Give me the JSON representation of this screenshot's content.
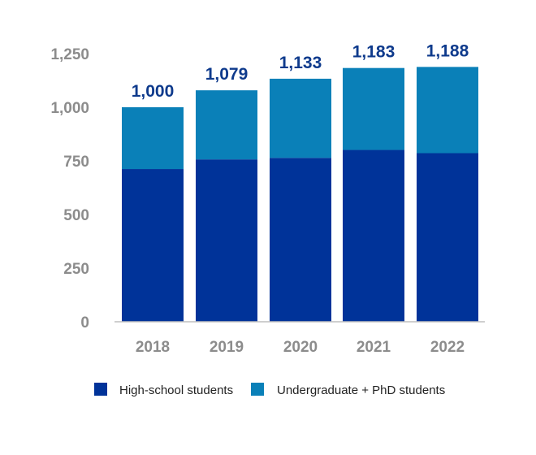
{
  "chart_data": {
    "type": "bar",
    "stacked": true,
    "categories": [
      "2018",
      "2019",
      "2020",
      "2021",
      "2022"
    ],
    "series": [
      {
        "name": "High-school students",
        "color": "#003399",
        "values": [
          712,
          757,
          764,
          801,
          786
        ]
      },
      {
        "name": "Undergraduate + PhD students",
        "color": "#0a80b8",
        "values": [
          288,
          322,
          369,
          382,
          402
        ]
      }
    ],
    "totals": [
      "1,000",
      "1,079",
      "1,133",
      "1,183",
      "1,188"
    ],
    "ylim": [
      0,
      1250
    ],
    "yticks": [
      0,
      250,
      500,
      750,
      1000,
      1250
    ],
    "ytick_labels": [
      "0",
      "250",
      "500",
      "750",
      "1,000",
      "1,250"
    ],
    "grid": false,
    "legend_position": "bottom",
    "colors": {
      "axis": "#bfbfbf",
      "tick_text": "#8c8c8c",
      "total_text": "#0e3a8c"
    }
  }
}
